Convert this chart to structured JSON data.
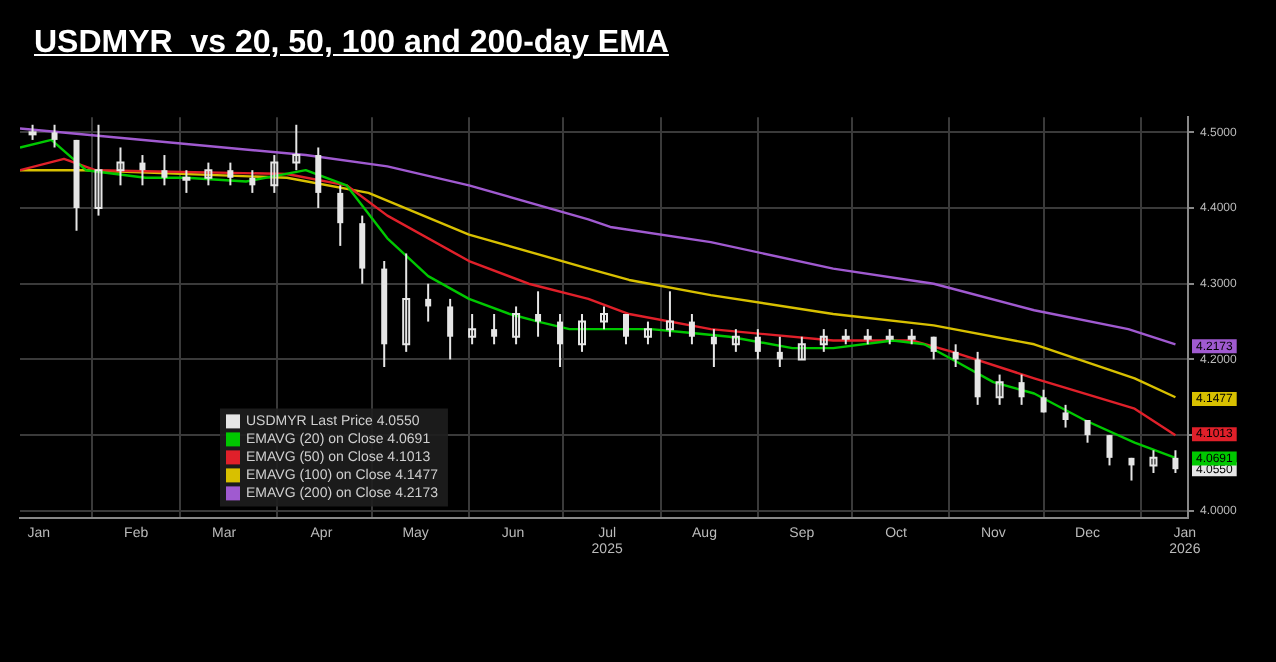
{
  "chart_data": {
    "type": "candlestick",
    "title": "USDMYR  vs 20, 50, 100 and 200-day EMA",
    "xlim": [
      "2025-01-09",
      "2026-01-16"
    ],
    "xticks": [
      {
        "value": "2025-01-15",
        "label": "Jan"
      },
      {
        "value": "2025-02-01",
        "label": null
      },
      {
        "value": "2025-02-15",
        "label": "Feb"
      },
      {
        "value": "2025-03-01",
        "label": null
      },
      {
        "value": "2025-03-15",
        "label": "Mar"
      },
      {
        "value": "2025-04-01",
        "label": null
      },
      {
        "value": "2025-04-15",
        "label": "Apr"
      },
      {
        "value": "2025-05-01",
        "label": null
      },
      {
        "value": "2025-05-15",
        "label": "May"
      },
      {
        "value": "2025-06-01",
        "label": null
      },
      {
        "value": "2025-06-15",
        "label": "Jun"
      },
      {
        "value": "2025-07-01",
        "label": null
      },
      {
        "value": "2025-07-15",
        "label": "Jul 2025"
      },
      {
        "value": "2025-08-01",
        "label": null
      },
      {
        "value": "2025-08-15",
        "label": "Aug"
      },
      {
        "value": "2025-09-01",
        "label": null
      },
      {
        "value": "2025-09-15",
        "label": "Sep"
      },
      {
        "value": "2025-10-01",
        "label": null
      },
      {
        "value": "2025-10-15",
        "label": "Oct"
      },
      {
        "value": "2025-11-01",
        "label": null
      },
      {
        "value": "2025-11-15",
        "label": "Nov"
      },
      {
        "value": "2025-12-01",
        "label": null
      },
      {
        "value": "2025-12-15",
        "label": "Dec"
      },
      {
        "value": "2026-01-01",
        "label": null
      },
      {
        "value": "2026-01-15",
        "label": "Jan 2026"
      }
    ],
    "ylim": [
      3.99,
      4.52
    ],
    "yticks": [
      {
        "value": 4.0,
        "label": "4.0000"
      },
      {
        "value": 4.1,
        "label": null
      },
      {
        "value": 4.2,
        "label": "4.2000"
      },
      {
        "value": 4.3,
        "label": "4.3000"
      },
      {
        "value": 4.4,
        "label": "4.4000"
      },
      {
        "value": 4.5,
        "label": "4.5000"
      }
    ],
    "grid": true,
    "legend": "bottom left",
    "series": [
      {
        "type": "candlestick",
        "name": "USDMYR Last Price 4.0550",
        "color": "#e6e6e6",
        "x": [
          "2025-01-13",
          "2025-01-20",
          "2025-01-27",
          "2025-02-03",
          "2025-02-10",
          "2025-02-17",
          "2025-02-24",
          "2025-03-03",
          "2025-03-10",
          "2025-03-17",
          "2025-03-24",
          "2025-03-31",
          "2025-04-07",
          "2025-04-14",
          "2025-04-21",
          "2025-04-28",
          "2025-05-05",
          "2025-05-12",
          "2025-05-19",
          "2025-05-26",
          "2025-06-02",
          "2025-06-09",
          "2025-06-16",
          "2025-06-23",
          "2025-06-30",
          "2025-07-07",
          "2025-07-14",
          "2025-07-21",
          "2025-07-28",
          "2025-08-04",
          "2025-08-11",
          "2025-08-18",
          "2025-08-25",
          "2025-09-01",
          "2025-09-08",
          "2025-09-15",
          "2025-09-22",
          "2025-09-29",
          "2025-10-06",
          "2025-10-13",
          "2025-10-20",
          "2025-10-27",
          "2025-11-03",
          "2025-11-10",
          "2025-11-17",
          "2025-11-24",
          "2025-12-01",
          "2025-12-08",
          "2025-12-15",
          "2025-12-22",
          "2025-12-29",
          "2026-01-05",
          "2026-01-12"
        ],
        "ohlc": [
          [
            4.5,
            4.51,
            4.49,
            4.5
          ],
          [
            4.5,
            4.51,
            4.48,
            4.49
          ],
          [
            4.49,
            4.49,
            4.37,
            4.4
          ],
          [
            4.4,
            4.51,
            4.39,
            4.45
          ],
          [
            4.45,
            4.48,
            4.43,
            4.46
          ],
          [
            4.46,
            4.47,
            4.43,
            4.45
          ],
          [
            4.45,
            4.47,
            4.43,
            4.44
          ],
          [
            4.44,
            4.45,
            4.42,
            4.44
          ],
          [
            4.44,
            4.46,
            4.43,
            4.45
          ],
          [
            4.45,
            4.46,
            4.43,
            4.44
          ],
          [
            4.44,
            4.45,
            4.42,
            4.43
          ],
          [
            4.43,
            4.47,
            4.42,
            4.46
          ],
          [
            4.46,
            4.51,
            4.45,
            4.47
          ],
          [
            4.47,
            4.48,
            4.4,
            4.42
          ],
          [
            4.42,
            4.43,
            4.35,
            4.38
          ],
          [
            4.38,
            4.39,
            4.3,
            4.32
          ],
          [
            4.32,
            4.33,
            4.19,
            4.22
          ],
          [
            4.22,
            4.34,
            4.21,
            4.28
          ],
          [
            4.28,
            4.3,
            4.25,
            4.27
          ],
          [
            4.27,
            4.28,
            4.2,
            4.23
          ],
          [
            4.23,
            4.26,
            4.22,
            4.24
          ],
          [
            4.24,
            4.26,
            4.22,
            4.23
          ],
          [
            4.23,
            4.27,
            4.22,
            4.26
          ],
          [
            4.26,
            4.29,
            4.23,
            4.25
          ],
          [
            4.25,
            4.26,
            4.19,
            4.22
          ],
          [
            4.22,
            4.26,
            4.21,
            4.25
          ],
          [
            4.25,
            4.27,
            4.24,
            4.26
          ],
          [
            4.26,
            4.26,
            4.22,
            4.23
          ],
          [
            4.23,
            4.25,
            4.22,
            4.24
          ],
          [
            4.24,
            4.29,
            4.23,
            4.25
          ],
          [
            4.25,
            4.26,
            4.22,
            4.23
          ],
          [
            4.23,
            4.24,
            4.19,
            4.22
          ],
          [
            4.22,
            4.24,
            4.21,
            4.23
          ],
          [
            4.23,
            4.24,
            4.2,
            4.21
          ],
          [
            4.21,
            4.23,
            4.19,
            4.2
          ],
          [
            4.2,
            4.23,
            4.2,
            4.22
          ],
          [
            4.22,
            4.24,
            4.21,
            4.23
          ],
          [
            4.23,
            4.24,
            4.22,
            4.23
          ],
          [
            4.23,
            4.24,
            4.22,
            4.23
          ],
          [
            4.23,
            4.24,
            4.22,
            4.23
          ],
          [
            4.23,
            4.24,
            4.22,
            4.23
          ],
          [
            4.23,
            4.23,
            4.2,
            4.21
          ],
          [
            4.21,
            4.22,
            4.19,
            4.2
          ],
          [
            4.2,
            4.21,
            4.14,
            4.15
          ],
          [
            4.15,
            4.18,
            4.14,
            4.17
          ],
          [
            4.17,
            4.18,
            4.14,
            4.15
          ],
          [
            4.15,
            4.16,
            4.13,
            4.13
          ],
          [
            4.13,
            4.14,
            4.11,
            4.12
          ],
          [
            4.12,
            4.12,
            4.09,
            4.1
          ],
          [
            4.1,
            4.1,
            4.06,
            4.07
          ],
          [
            4.07,
            4.07,
            4.04,
            4.06
          ],
          [
            4.06,
            4.08,
            4.05,
            4.07
          ],
          [
            4.07,
            4.08,
            4.05,
            4.055
          ]
        ]
      },
      {
        "type": "line",
        "name": "EMAVG (20) on Close 4.0691",
        "color": "#00c800",
        "x": [
          "2025-01-09",
          "2025-01-19",
          "2025-01-30",
          "2025-02-18",
          "2025-03-03",
          "2025-03-22",
          "2025-04-10",
          "2025-04-23",
          "2025-05-06",
          "2025-05-19",
          "2025-06-01",
          "2025-06-14",
          "2025-06-23",
          "2025-07-03",
          "2025-07-29",
          "2025-08-11",
          "2025-08-23",
          "2025-09-12",
          "2025-09-25",
          "2025-10-14",
          "2025-10-24",
          "2025-11-02",
          "2025-11-15",
          "2025-11-28",
          "2025-12-14",
          "2025-12-30",
          "2026-01-12"
        ],
        "values": [
          4.48,
          4.49,
          4.45,
          4.44,
          4.44,
          4.435,
          4.45,
          4.43,
          4.36,
          4.31,
          4.28,
          4.26,
          4.25,
          4.24,
          4.24,
          4.235,
          4.23,
          4.215,
          4.215,
          4.225,
          4.22,
          4.2,
          4.17,
          4.155,
          4.12,
          4.09,
          4.07
        ]
      },
      {
        "type": "line",
        "name": "EMAVG (50) on Close 4.1013",
        "color": "#e0202a",
        "x": [
          "2025-01-09",
          "2025-01-23",
          "2025-02-02",
          "2025-04-04",
          "2025-04-23",
          "2025-05-06",
          "2025-06-01",
          "2025-06-20",
          "2025-07-09",
          "2025-07-22",
          "2025-08-17",
          "2025-09-25",
          "2025-10-20",
          "2025-11-02",
          "2025-11-28",
          "2025-12-30",
          "2026-01-12"
        ],
        "values": [
          4.45,
          4.465,
          4.45,
          4.445,
          4.43,
          4.39,
          4.33,
          4.3,
          4.28,
          4.26,
          4.24,
          4.225,
          4.225,
          4.21,
          4.175,
          4.135,
          4.1
        ]
      },
      {
        "type": "line",
        "name": "EMAVG (100) on Close 4.1477",
        "color": "#d8c000",
        "x": [
          "2025-01-09",
          "2025-01-30",
          "2025-04-04",
          "2025-04-30",
          "2025-06-01",
          "2025-07-09",
          "2025-07-22",
          "2025-08-17",
          "2025-09-25",
          "2025-10-27",
          "2025-11-28",
          "2025-12-30",
          "2026-01-12"
        ],
        "values": [
          4.45,
          4.45,
          4.44,
          4.42,
          4.365,
          4.32,
          4.305,
          4.285,
          4.26,
          4.245,
          4.22,
          4.175,
          4.15
        ]
      },
      {
        "type": "line",
        "name": "EMAVG (200) on Close 4.2173",
        "color": "#a05ad0",
        "x": [
          "2025-01-09",
          "2025-04-10",
          "2025-05-06",
          "2025-06-01",
          "2025-07-09",
          "2025-07-16",
          "2025-08-17",
          "2025-09-25",
          "2025-10-27",
          "2025-11-28",
          "2025-12-28",
          "2026-01-12"
        ],
        "values": [
          4.505,
          4.47,
          4.455,
          4.43,
          4.385,
          4.375,
          4.355,
          4.32,
          4.3,
          4.265,
          4.24,
          4.22
        ]
      }
    ],
    "annotations": [
      {
        "text": "4.0550",
        "x": "2026-01-12",
        "y": 4.055
      },
      {
        "text": "4.0691",
        "x": "2026-01-12",
        "y": 4.0691
      },
      {
        "text": "4.1013",
        "x": "2026-01-12",
        "y": 4.1013
      },
      {
        "text": "4.1477",
        "x": "2026-01-12",
        "y": 4.1477
      },
      {
        "text": "4.2173",
        "x": "2026-01-12",
        "y": 4.2173
      }
    ]
  }
}
